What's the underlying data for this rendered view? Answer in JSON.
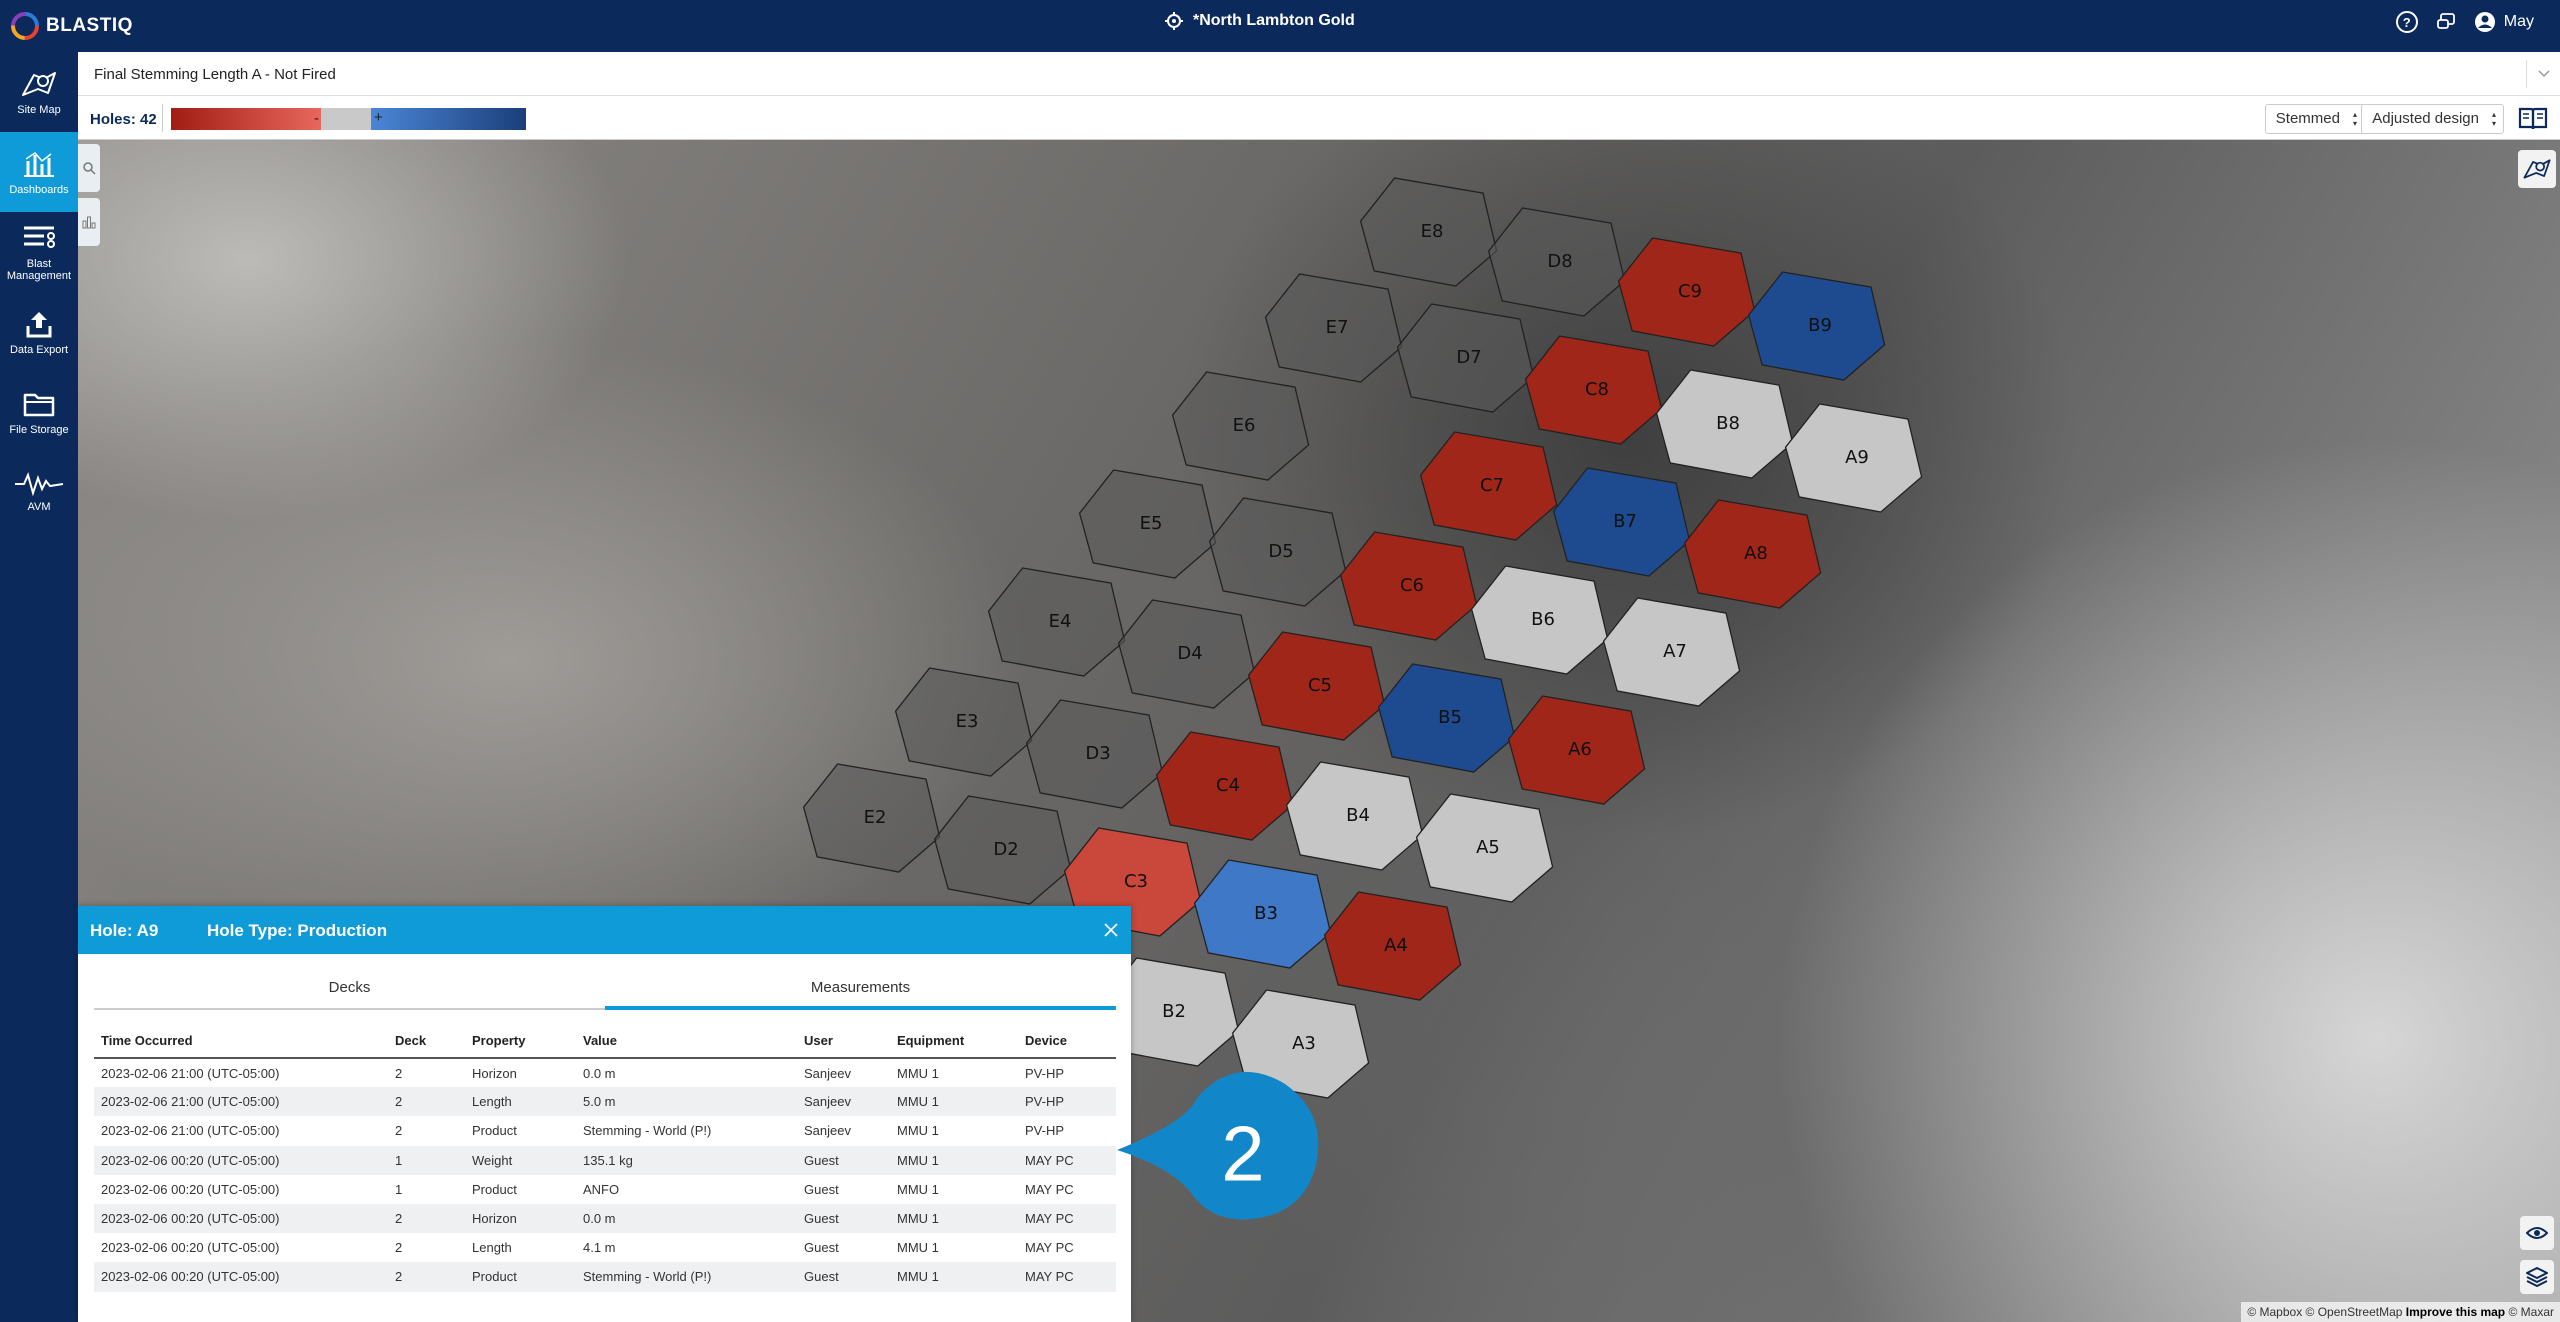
{
  "app": {
    "name": "BLASTIQ",
    "site": "*North Lambton Gold",
    "user": "May"
  },
  "icons": {
    "logo": "blastiq-logo",
    "site": "location-target-icon",
    "help": "help-icon",
    "feedback": "feedback-icon",
    "user": "user-avatar-icon"
  },
  "sidebar": {
    "items": [
      {
        "label": "Site Map",
        "icon": "site-map-icon",
        "active": false
      },
      {
        "label": "Dashboards",
        "icon": "dashboards-icon",
        "active": true
      },
      {
        "label": "Blast Management",
        "icon": "blast-management-icon",
        "active": false
      },
      {
        "label": "Data Export",
        "icon": "data-export-icon",
        "active": false
      },
      {
        "label": "File Storage",
        "icon": "file-storage-icon",
        "active": false
      },
      {
        "label": "AVM",
        "icon": "avm-icon",
        "active": false
      }
    ]
  },
  "dashboard": {
    "title": "Final Stemming Length A - Not Fired"
  },
  "legend": {
    "holes_label": "Holes: 42",
    "minus": "-",
    "plus": "+",
    "colors": {
      "negative": "#a11d14",
      "neutral": "#c9c9c9",
      "positive": "#1b3f7a"
    }
  },
  "filters": {
    "stemmed": "Stemmed",
    "design": "Adjusted design"
  },
  "map": {
    "holes": [
      {
        "id": "E8",
        "status": "none"
      },
      {
        "id": "D8",
        "status": "none"
      },
      {
        "id": "C9",
        "status": "short"
      },
      {
        "id": "B9",
        "status": "long"
      },
      {
        "id": "E7",
        "status": "none"
      },
      {
        "id": "D7",
        "status": "none"
      },
      {
        "id": "C8",
        "status": "short"
      },
      {
        "id": "B8",
        "status": "ok"
      },
      {
        "id": "A9",
        "status": "ok"
      },
      {
        "id": "E6",
        "status": "none"
      },
      {
        "id": "C7",
        "status": "short"
      },
      {
        "id": "B7",
        "status": "long"
      },
      {
        "id": "A8",
        "status": "short"
      },
      {
        "id": "E5",
        "status": "none"
      },
      {
        "id": "D5",
        "status": "none"
      },
      {
        "id": "C6",
        "status": "short"
      },
      {
        "id": "B6",
        "status": "ok"
      },
      {
        "id": "A7",
        "status": "ok"
      },
      {
        "id": "E4",
        "status": "none"
      },
      {
        "id": "D4",
        "status": "none"
      },
      {
        "id": "C5",
        "status": "short"
      },
      {
        "id": "B5",
        "status": "long"
      },
      {
        "id": "A6",
        "status": "short"
      },
      {
        "id": "E3",
        "status": "none"
      },
      {
        "id": "D3",
        "status": "none"
      },
      {
        "id": "C4",
        "status": "short"
      },
      {
        "id": "B4",
        "status": "ok"
      },
      {
        "id": "A5",
        "status": "ok"
      },
      {
        "id": "E2",
        "status": "none"
      },
      {
        "id": "D2",
        "status": "none"
      },
      {
        "id": "C3",
        "status": "short-light"
      },
      {
        "id": "B3",
        "status": "long-light"
      },
      {
        "id": "A4",
        "status": "short"
      },
      {
        "id": "B2",
        "status": "ok"
      },
      {
        "id": "A3",
        "status": "ok"
      }
    ],
    "attribution": {
      "mapbox": "© Mapbox",
      "osm": "© OpenStreetMap",
      "improve": "Improve this map",
      "maxar": "© Maxar"
    }
  },
  "panel": {
    "hole": "Hole: A9",
    "hole_type": "Hole Type: Production",
    "tabs": [
      "Decks",
      "Measurements"
    ],
    "active_tab": "Measurements",
    "columns": [
      "Time Occurred",
      "Deck",
      "Property",
      "Value",
      "User",
      "Equipment",
      "Device"
    ],
    "rows": [
      [
        "2023-02-06 21:00 (UTC-05:00)",
        "2",
        "Horizon",
        "0.0 m",
        "Sanjeev",
        "MMU 1",
        "PV-HP"
      ],
      [
        "2023-02-06 21:00 (UTC-05:00)",
        "2",
        "Length",
        "5.0 m",
        "Sanjeev",
        "MMU 1",
        "PV-HP"
      ],
      [
        "2023-02-06 21:00 (UTC-05:00)",
        "2",
        "Product",
        "Stemming - World (P!)",
        "Sanjeev",
        "MMU 1",
        "PV-HP"
      ],
      [
        "2023-02-06 00:20 (UTC-05:00)",
        "1",
        "Weight",
        "135.1 kg",
        "Guest",
        "MMU 1",
        "MAY PC"
      ],
      [
        "2023-02-06 00:20 (UTC-05:00)",
        "1",
        "Product",
        "ANFO",
        "Guest",
        "MMU 1",
        "MAY PC"
      ],
      [
        "2023-02-06 00:20 (UTC-05:00)",
        "2",
        "Horizon",
        "0.0 m",
        "Guest",
        "MMU 1",
        "MAY PC"
      ],
      [
        "2023-02-06 00:20 (UTC-05:00)",
        "2",
        "Length",
        "4.1 m",
        "Guest",
        "MMU 1",
        "MAY PC"
      ],
      [
        "2023-02-06 00:20 (UTC-05:00)",
        "2",
        "Product",
        "Stemming - World (P!)",
        "Guest",
        "MMU 1",
        "MAY PC"
      ]
    ]
  },
  "callout": {
    "number": "2",
    "color": "#1187c9"
  }
}
